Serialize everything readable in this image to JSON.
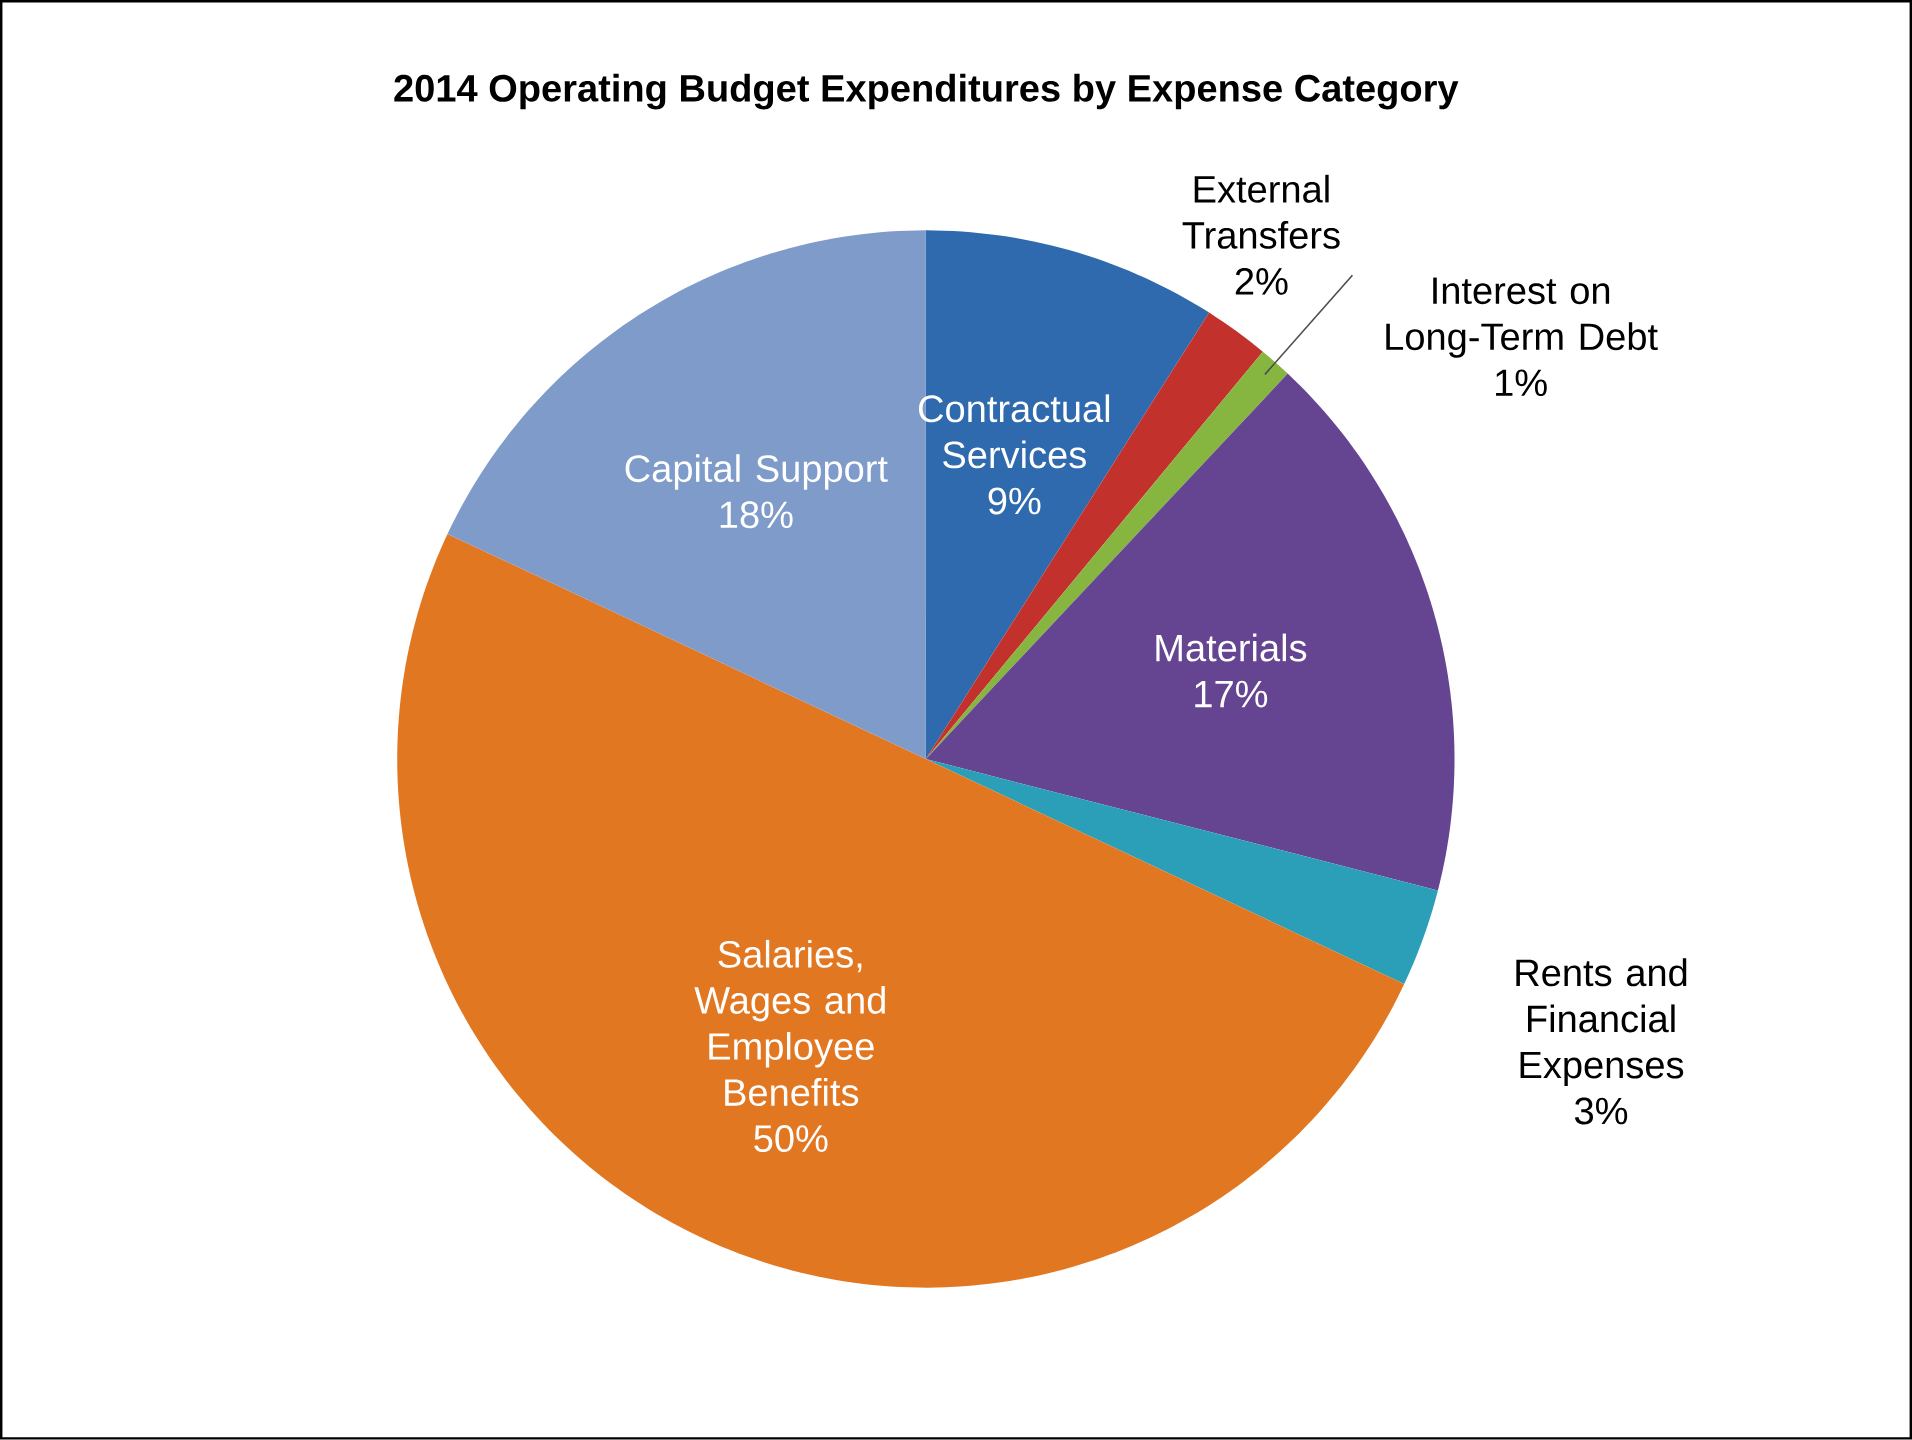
{
  "chart_data": {
    "type": "pie",
    "title": "2014 Operating Budget Expenditures by Expense Category",
    "categories": [
      "Contractual Services",
      "External Transfers",
      "Interest on Long-Term Debt",
      "Materials",
      "Rents and Financial Expenses",
      "Salaries, Wages and Employee Benefits",
      "Capital Support"
    ],
    "values": [
      9,
      2,
      1,
      17,
      3,
      50,
      18
    ],
    "value_labels": [
      "9%",
      "2%",
      "1%",
      "17%",
      "3%",
      "50%",
      "18%"
    ],
    "colors": [
      "#2f6aae",
      "#c3312d",
      "#86b540",
      "#654592",
      "#2b9fb8",
      "#e27722",
      "#7f9bc9"
    ]
  }
}
